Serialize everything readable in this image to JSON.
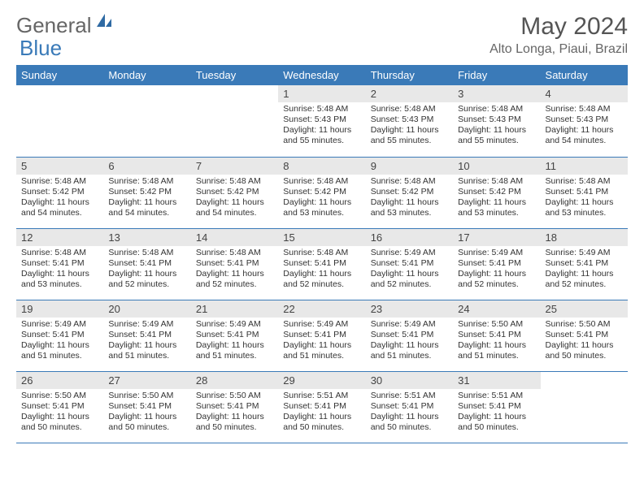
{
  "logo": {
    "text1": "General",
    "text2": "Blue",
    "icon_color": "#2f6aa3"
  },
  "title": "May 2024",
  "location": "Alto Longa, Piaui, Brazil",
  "colors": {
    "header_bg": "#3a7ab8",
    "header_fg": "#ffffff",
    "daynum_bg": "#e8e8e8",
    "rule": "#3a7ab8"
  },
  "weekdays": [
    "Sunday",
    "Monday",
    "Tuesday",
    "Wednesday",
    "Thursday",
    "Friday",
    "Saturday"
  ],
  "weeks": [
    [
      null,
      null,
      null,
      {
        "n": "1",
        "sr": "5:48 AM",
        "ss": "5:43 PM",
        "dl": "11 hours and 55 minutes."
      },
      {
        "n": "2",
        "sr": "5:48 AM",
        "ss": "5:43 PM",
        "dl": "11 hours and 55 minutes."
      },
      {
        "n": "3",
        "sr": "5:48 AM",
        "ss": "5:43 PM",
        "dl": "11 hours and 55 minutes."
      },
      {
        "n": "4",
        "sr": "5:48 AM",
        "ss": "5:43 PM",
        "dl": "11 hours and 54 minutes."
      }
    ],
    [
      {
        "n": "5",
        "sr": "5:48 AM",
        "ss": "5:42 PM",
        "dl": "11 hours and 54 minutes."
      },
      {
        "n": "6",
        "sr": "5:48 AM",
        "ss": "5:42 PM",
        "dl": "11 hours and 54 minutes."
      },
      {
        "n": "7",
        "sr": "5:48 AM",
        "ss": "5:42 PM",
        "dl": "11 hours and 54 minutes."
      },
      {
        "n": "8",
        "sr": "5:48 AM",
        "ss": "5:42 PM",
        "dl": "11 hours and 53 minutes."
      },
      {
        "n": "9",
        "sr": "5:48 AM",
        "ss": "5:42 PM",
        "dl": "11 hours and 53 minutes."
      },
      {
        "n": "10",
        "sr": "5:48 AM",
        "ss": "5:42 PM",
        "dl": "11 hours and 53 minutes."
      },
      {
        "n": "11",
        "sr": "5:48 AM",
        "ss": "5:41 PM",
        "dl": "11 hours and 53 minutes."
      }
    ],
    [
      {
        "n": "12",
        "sr": "5:48 AM",
        "ss": "5:41 PM",
        "dl": "11 hours and 53 minutes."
      },
      {
        "n": "13",
        "sr": "5:48 AM",
        "ss": "5:41 PM",
        "dl": "11 hours and 52 minutes."
      },
      {
        "n": "14",
        "sr": "5:48 AM",
        "ss": "5:41 PM",
        "dl": "11 hours and 52 minutes."
      },
      {
        "n": "15",
        "sr": "5:48 AM",
        "ss": "5:41 PM",
        "dl": "11 hours and 52 minutes."
      },
      {
        "n": "16",
        "sr": "5:49 AM",
        "ss": "5:41 PM",
        "dl": "11 hours and 52 minutes."
      },
      {
        "n": "17",
        "sr": "5:49 AM",
        "ss": "5:41 PM",
        "dl": "11 hours and 52 minutes."
      },
      {
        "n": "18",
        "sr": "5:49 AM",
        "ss": "5:41 PM",
        "dl": "11 hours and 52 minutes."
      }
    ],
    [
      {
        "n": "19",
        "sr": "5:49 AM",
        "ss": "5:41 PM",
        "dl": "11 hours and 51 minutes."
      },
      {
        "n": "20",
        "sr": "5:49 AM",
        "ss": "5:41 PM",
        "dl": "11 hours and 51 minutes."
      },
      {
        "n": "21",
        "sr": "5:49 AM",
        "ss": "5:41 PM",
        "dl": "11 hours and 51 minutes."
      },
      {
        "n": "22",
        "sr": "5:49 AM",
        "ss": "5:41 PM",
        "dl": "11 hours and 51 minutes."
      },
      {
        "n": "23",
        "sr": "5:49 AM",
        "ss": "5:41 PM",
        "dl": "11 hours and 51 minutes."
      },
      {
        "n": "24",
        "sr": "5:50 AM",
        "ss": "5:41 PM",
        "dl": "11 hours and 51 minutes."
      },
      {
        "n": "25",
        "sr": "5:50 AM",
        "ss": "5:41 PM",
        "dl": "11 hours and 50 minutes."
      }
    ],
    [
      {
        "n": "26",
        "sr": "5:50 AM",
        "ss": "5:41 PM",
        "dl": "11 hours and 50 minutes."
      },
      {
        "n": "27",
        "sr": "5:50 AM",
        "ss": "5:41 PM",
        "dl": "11 hours and 50 minutes."
      },
      {
        "n": "28",
        "sr": "5:50 AM",
        "ss": "5:41 PM",
        "dl": "11 hours and 50 minutes."
      },
      {
        "n": "29",
        "sr": "5:51 AM",
        "ss": "5:41 PM",
        "dl": "11 hours and 50 minutes."
      },
      {
        "n": "30",
        "sr": "5:51 AM",
        "ss": "5:41 PM",
        "dl": "11 hours and 50 minutes."
      },
      {
        "n": "31",
        "sr": "5:51 AM",
        "ss": "5:41 PM",
        "dl": "11 hours and 50 minutes."
      },
      null
    ]
  ],
  "labels": {
    "sunrise": "Sunrise:",
    "sunset": "Sunset:",
    "daylight": "Daylight:"
  }
}
